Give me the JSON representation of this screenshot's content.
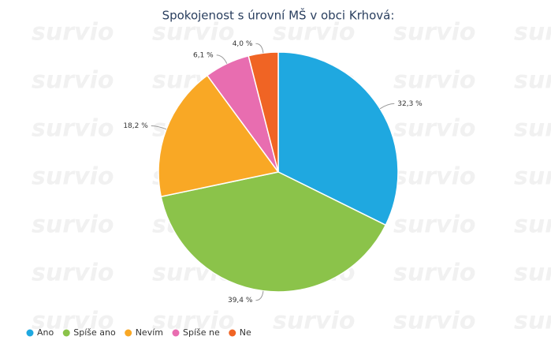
{
  "watermark": "survio",
  "chart_data": {
    "type": "pie",
    "title": "Spokojenost s úrovní MŠ v obci Krhová:",
    "categories": [
      "Ano",
      "Spíše ano",
      "Nevím",
      "Spíše ne",
      "Ne"
    ],
    "values": [
      32.3,
      39.4,
      18.2,
      6.1,
      4.0
    ],
    "value_labels": [
      "32,3 %",
      "39,4 %",
      "18,2 %",
      "6,1 %",
      "4,0 %"
    ],
    "colors": [
      "#1fa8e0",
      "#8bc34a",
      "#f9a825",
      "#e86db0",
      "#f06424"
    ],
    "legend": "bottom-left"
  }
}
